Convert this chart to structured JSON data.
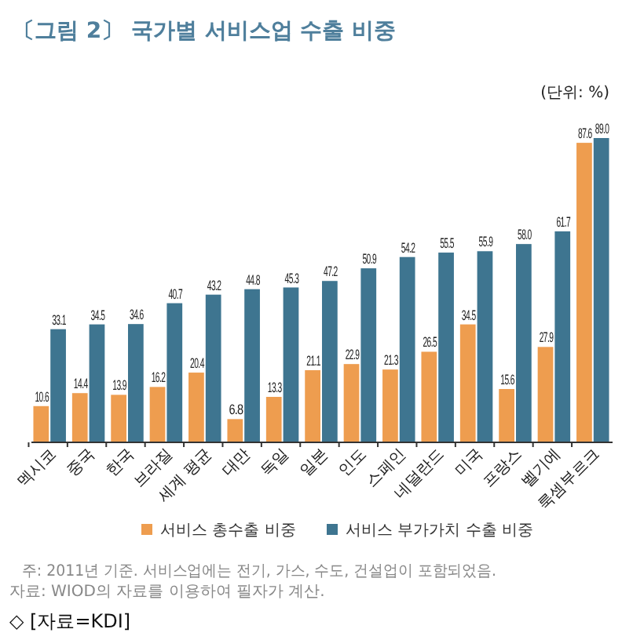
{
  "chart_data": {
    "type": "bar",
    "title": "〔그림 2〕 국가별 서비스업 수출 비중",
    "categories": [
      "멕시코",
      "중국",
      "한국",
      "브라질",
      "세계 평균",
      "대만",
      "독일",
      "일본",
      "인도",
      "스페인",
      "네덜란드",
      "미국",
      "프랑스",
      "벨기에",
      "룩셈부르크"
    ],
    "series": [
      {
        "name": "서비스 총수출 비중",
        "color": "#ee9d4f",
        "values": [
          10.6,
          14.4,
          13.9,
          16.2,
          20.4,
          6.8,
          13.3,
          21.1,
          22.9,
          21.3,
          26.5,
          34.5,
          15.6,
          27.9,
          87.6
        ],
        "value_labels": [
          "10.6",
          "14.4",
          "13.9",
          "16.2",
          "20.4",
          "6.8",
          "13.3",
          "21.1",
          "22.9",
          "21.3",
          "26.5",
          "34.5",
          "15.6",
          "27.9",
          "87.6"
        ]
      },
      {
        "name": "서비스 부가가치 수출 비중",
        "color": "#3e7590",
        "values": [
          33.1,
          34.5,
          34.6,
          40.7,
          43.2,
          44.8,
          45.3,
          47.2,
          50.9,
          54.2,
          55.5,
          55.9,
          58.0,
          61.7,
          89.0
        ],
        "value_labels": [
          "33.1",
          "34.5",
          "34.6",
          "40.7",
          "43.2",
          "44.8",
          "45.3",
          "47.2",
          "50.9",
          "54.2",
          "55.5",
          "55.9",
          "58.0",
          "61.7",
          "89.0"
        ]
      }
    ],
    "legend": "bottom",
    "annotations": [
      "(단위: %)",
      "주: 2011년 기준. 서비스업에는 전기, 가스, 수도, 건설업이 포함되었음.",
      "자료: WIOD의 자료를 이용하여 필자가 계산.",
      "◇ [자료=KDI]"
    ]
  }
}
